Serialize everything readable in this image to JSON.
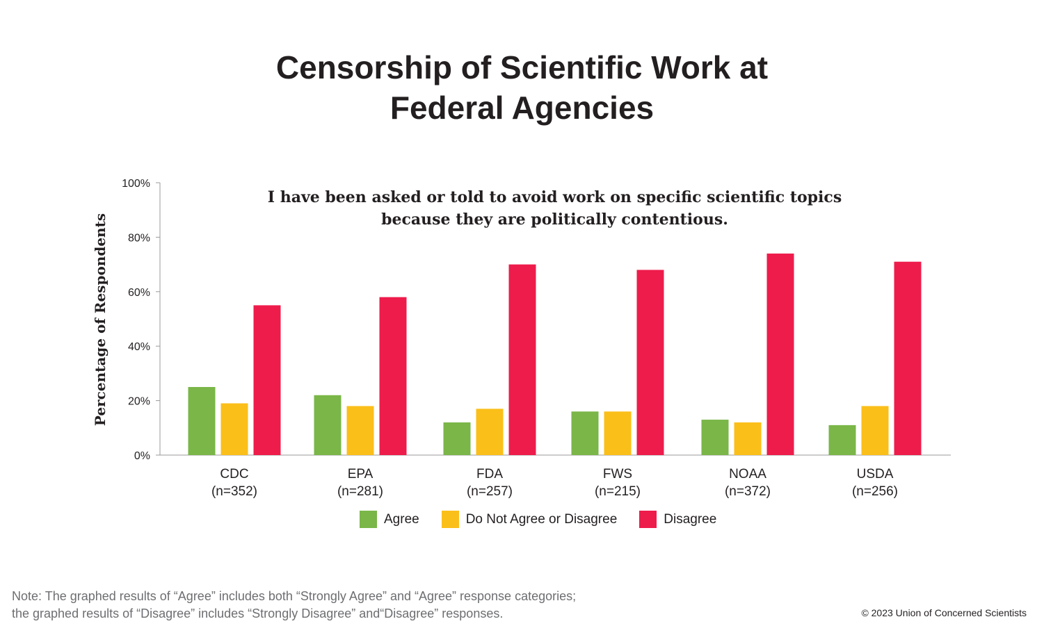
{
  "chart_data": {
    "type": "bar",
    "title": "Censorship of Scientific Work at Federal Agencies",
    "subtitle": "I have been asked or told to avoid work on specific scientific topics because they are politically contentious.",
    "xlabel": "",
    "ylabel": "Percentage of Respondents",
    "ylim": [
      0,
      100
    ],
    "yticks": [
      "0%",
      "20%",
      "40%",
      "60%",
      "80%",
      "100%"
    ],
    "ytick_values": [
      0,
      20,
      40,
      60,
      80,
      100
    ],
    "categories": [
      "CDC",
      "EPA",
      "FDA",
      "FWS",
      "NOAA",
      "USDA"
    ],
    "category_sublabels": [
      "(n=352)",
      "(n=281)",
      "(n=257)",
      "(n=215)",
      "(n=372)",
      "(n=256)"
    ],
    "series": [
      {
        "name": "Agree",
        "color": "#7ab648",
        "values": [
          25,
          22,
          12,
          16,
          13,
          11
        ]
      },
      {
        "name": "Do Not Agree or Disagree",
        "color": "#fbbf1a",
        "values": [
          19,
          18,
          17,
          16,
          12,
          18
        ]
      },
      {
        "name": "Disagree",
        "color": "#ee1c4b",
        "values": [
          55,
          58,
          70,
          68,
          74,
          71
        ]
      }
    ],
    "legend_position": "bottom",
    "grid": false
  },
  "note_line1": "Note: The graphed results of “Agree” includes both “Strongly Agree” and “Agree” response categories;",
  "note_line2": "the graphed results of “Disagree” includes “Strongly Disagree” and“Disagree” responses.",
  "copyright": "© 2023 Union of Concerned Scientists"
}
